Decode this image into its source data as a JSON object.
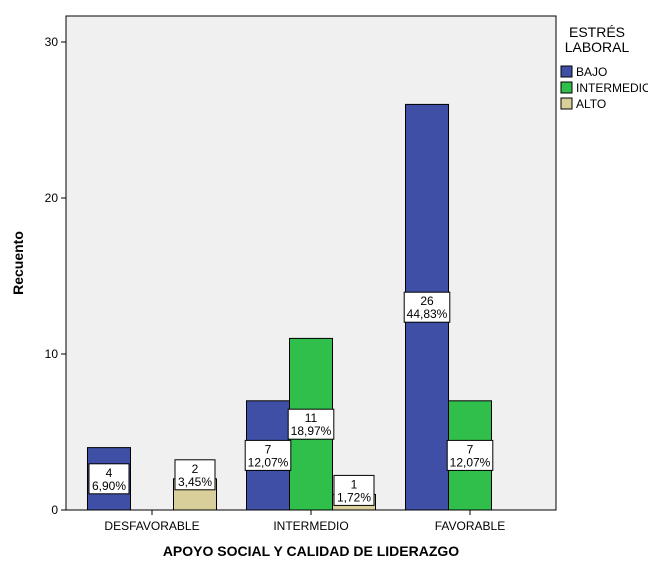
{
  "chart_data": {
    "type": "bar",
    "xlabel": "APOYO SOCIAL Y CALIDAD DE LIDERAZGO",
    "ylabel": "Recuento",
    "ylim": [
      0,
      32
    ],
    "yticks": [
      0,
      10,
      20,
      30
    ],
    "categories": [
      "DESFAVORABLE",
      "INTERMEDIO",
      "FAVORABLE"
    ],
    "legend_title_lines": [
      "ESTRÉS",
      "LABORAL"
    ],
    "legend_position": "right",
    "grid": false,
    "series": [
      {
        "name": "BAJO",
        "color": "#3f4fa6",
        "values": [
          4,
          7,
          26
        ],
        "labels": [
          [
            "4",
            "6,90%"
          ],
          [
            "7",
            "12,07%"
          ],
          [
            "26",
            "44,83%"
          ]
        ]
      },
      {
        "name": "INTERMEDIO",
        "color": "#2fbf4a",
        "values": [
          0,
          11,
          7
        ],
        "labels": [
          null,
          [
            "11",
            "18,97%"
          ],
          [
            "7",
            "12,07%"
          ]
        ]
      },
      {
        "name": "ALTO",
        "color": "#d8cf9a",
        "values": [
          2,
          1,
          0
        ],
        "labels": [
          [
            "2",
            "3,45%"
          ],
          [
            "1",
            "1,72%"
          ],
          null
        ]
      }
    ]
  }
}
